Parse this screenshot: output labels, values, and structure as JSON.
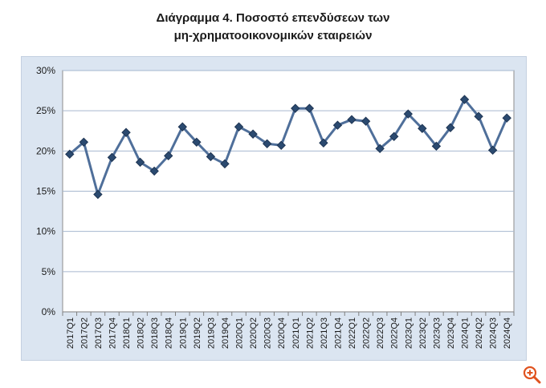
{
  "title": {
    "line1": "Διάγραμμα 4. Ποσοστό επενδύσεων των",
    "line2": "μη-χρηματοοικονομικών εταιρειών"
  },
  "chart_data": {
    "type": "line",
    "categories": [
      "2017Q1",
      "2017Q2",
      "2017Q3",
      "2017Q4",
      "2018Q1",
      "2018Q2",
      "2018Q3",
      "2018Q4",
      "2019Q1",
      "2019Q2",
      "2019Q3",
      "2019Q4",
      "2020Q1",
      "2020Q2",
      "2020Q3",
      "2020Q4",
      "2021Q1",
      "2021Q2",
      "2021Q3",
      "2021Q4",
      "2022Q1",
      "2022Q2",
      "2022Q3",
      "2022Q4",
      "2023Q1",
      "2023Q2",
      "2023Q3",
      "2023Q4",
      "2024Q1",
      "2024Q2",
      "2024Q3",
      "2024Q4"
    ],
    "series": [
      {
        "values": [
          19.6,
          21.1,
          14.6,
          19.2,
          22.3,
          18.6,
          17.5,
          19.4,
          23.0,
          21.1,
          19.3,
          18.4,
          23.0,
          22.1,
          20.9,
          20.7,
          25.3,
          25.3,
          21.0,
          23.2,
          23.9,
          23.7,
          20.3,
          21.8,
          24.6,
          22.8,
          20.6,
          22.9,
          26.4,
          24.3,
          20.1,
          24.1
        ]
      }
    ],
    "ylim": [
      0,
      30
    ],
    "yticks": [
      "0%",
      "5%",
      "10%",
      "15%",
      "20%",
      "25%",
      "30%"
    ],
    "ytick_values": [
      0,
      5,
      10,
      15,
      20,
      25,
      30
    ],
    "grid": true,
    "colors": {
      "line": "#4f6f9a",
      "marker": "#2b4a70",
      "grid": "#a6b8cf",
      "plot_bg": "#ffffff",
      "frame_bg": "#dbe5f1"
    }
  },
  "icons": {
    "zoom": "zoom-in-icon"
  }
}
